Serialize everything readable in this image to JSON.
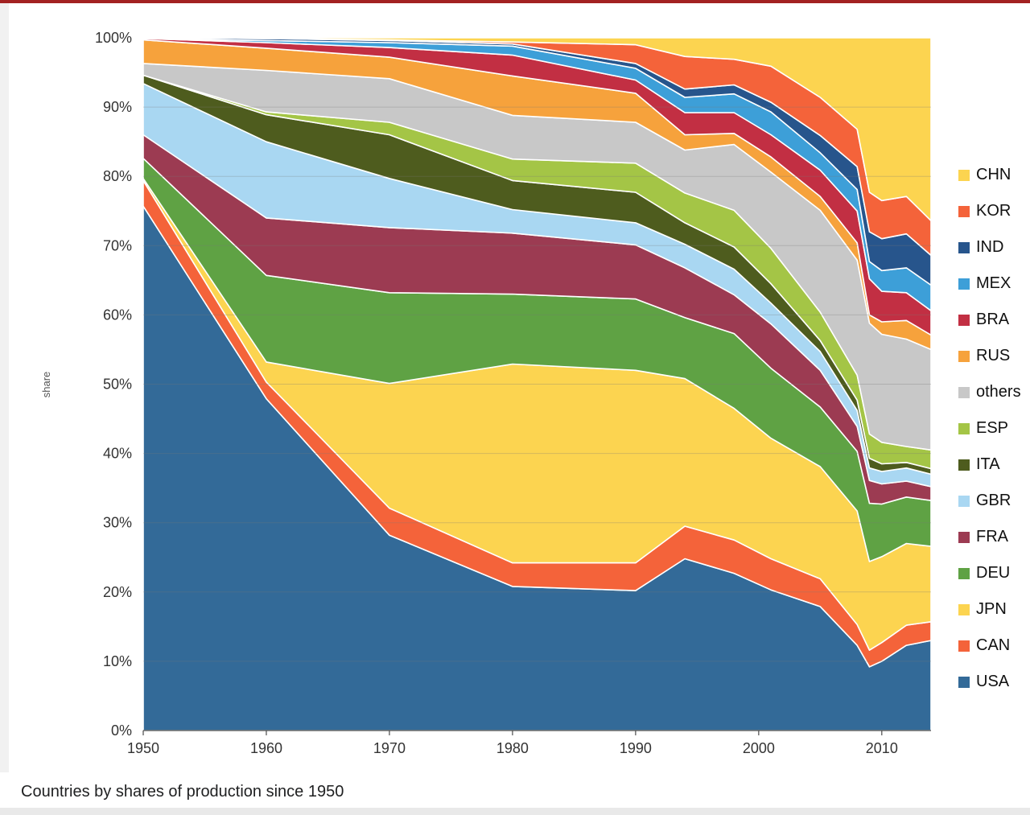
{
  "page": {
    "top_rule_color": "#a32222",
    "background_color": "#ffffff"
  },
  "chart_data": {
    "type": "area",
    "stacked": true,
    "caption": "Countries by shares of production since 1950",
    "ylabel": "share",
    "unit": "percent of world production",
    "grid": "horizontal",
    "legend_position": "right",
    "x_range": [
      1950,
      2014
    ],
    "y_range": [
      0,
      100
    ],
    "x_ticks": {
      "values": [
        1950,
        1960,
        1970,
        1980,
        1990,
        2000,
        2010
      ],
      "labels": [
        "1950",
        "1960",
        "1970",
        "1980",
        "1990",
        "2000",
        "2010"
      ]
    },
    "y_ticks": {
      "values": [
        0,
        10,
        20,
        30,
        40,
        50,
        60,
        70,
        80,
        90,
        100
      ],
      "labels": [
        "0%",
        "10%",
        "20%",
        "30%",
        "40%",
        "50%",
        "60%",
        "70%",
        "80%",
        "90%",
        "100%"
      ]
    },
    "years": [
      1950,
      1960,
      1970,
      1980,
      1990,
      1994,
      1998,
      2001,
      2005,
      2008,
      2009,
      2010,
      2012,
      2014
    ],
    "legend_labels": [
      "CHN",
      "KOR",
      "IND",
      "MEX",
      "BRA",
      "RUS",
      "others",
      "ESP",
      "ITA",
      "GBR",
      "FRA",
      "DEU",
      "JPN",
      "CAN",
      "USA"
    ],
    "series": [
      {
        "name": "USA",
        "color": "#336a98",
        "values": [
          75.7,
          47.9,
          28.2,
          20.8,
          20.2,
          24.8,
          22.7,
          20.3,
          17.9,
          12.3,
          9.2,
          10.0,
          12.3,
          13.0
        ]
      },
      {
        "name": "CAN",
        "color": "#f4633a",
        "values": [
          3.7,
          2.4,
          3.9,
          3.4,
          4.0,
          4.7,
          4.8,
          4.5,
          4.0,
          3.0,
          2.4,
          2.7,
          2.9,
          2.7
        ]
      },
      {
        "name": "JPN",
        "color": "#fcd450",
        "values": [
          0.3,
          2.9,
          18.0,
          28.7,
          27.8,
          21.3,
          19.0,
          17.4,
          16.2,
          16.4,
          12.8,
          12.4,
          11.8,
          10.9
        ]
      },
      {
        "name": "DEU",
        "color": "#5fa244",
        "values": [
          2.9,
          12.5,
          13.1,
          10.1,
          10.3,
          8.8,
          10.8,
          10.1,
          8.6,
          8.6,
          8.4,
          7.6,
          6.7,
          6.6
        ]
      },
      {
        "name": "FRA",
        "color": "#9c3b52",
        "values": [
          3.4,
          8.3,
          9.4,
          8.8,
          7.8,
          7.2,
          5.6,
          6.4,
          5.3,
          3.6,
          3.3,
          2.9,
          2.3,
          2.0
        ]
      },
      {
        "name": "GBR",
        "color": "#a9d7f2",
        "values": [
          7.4,
          11.0,
          7.1,
          3.4,
          3.2,
          3.4,
          3.7,
          3.0,
          2.7,
          2.3,
          1.8,
          1.8,
          1.9,
          1.8
        ]
      },
      {
        "name": "ITA",
        "color": "#4e5c1e",
        "values": [
          1.2,
          3.9,
          6.3,
          4.2,
          4.4,
          3.1,
          3.2,
          2.8,
          1.6,
          1.5,
          1.4,
          1.1,
          0.8,
          0.8
        ]
      },
      {
        "name": "ESP",
        "color": "#a4c546",
        "values": [
          0.0,
          0.4,
          1.8,
          3.1,
          4.2,
          4.3,
          5.3,
          5.1,
          4.1,
          3.6,
          3.5,
          3.1,
          2.3,
          2.7
        ]
      },
      {
        "name": "others",
        "color": "#c8c8c8",
        "values": [
          1.7,
          6.0,
          6.3,
          6.3,
          5.9,
          6.2,
          9.5,
          11.0,
          14.7,
          16.6,
          16.0,
          15.6,
          15.5,
          14.5
        ]
      },
      {
        "name": "RUS",
        "color": "#f6a23c",
        "values": [
          3.4,
          3.2,
          3.1,
          5.7,
          4.2,
          2.2,
          1.6,
          2.2,
          2.0,
          2.5,
          1.2,
          1.8,
          2.7,
          2.1
        ]
      },
      {
        "name": "BRA",
        "color": "#c22f43",
        "values": [
          0.2,
          0.8,
          1.4,
          3.0,
          1.9,
          3.2,
          3.0,
          3.2,
          3.8,
          4.6,
          5.2,
          4.4,
          4.0,
          3.5
        ]
      },
      {
        "name": "MEX",
        "color": "#3d9fd8",
        "values": [
          0.0,
          0.3,
          0.7,
          1.3,
          1.7,
          2.2,
          2.7,
          3.3,
          2.5,
          3.1,
          2.5,
          3.0,
          3.6,
          3.7
        ]
      },
      {
        "name": "IND",
        "color": "#27558c",
        "values": [
          0.1,
          0.3,
          0.3,
          0.3,
          0.7,
          1.2,
          1.3,
          1.4,
          2.5,
          3.3,
          4.3,
          4.6,
          4.9,
          4.3
        ]
      },
      {
        "name": "KOR",
        "color": "#f4633a",
        "values": [
          0.0,
          0.0,
          0.1,
          0.3,
          2.7,
          4.7,
          3.7,
          5.2,
          5.5,
          5.4,
          5.7,
          5.5,
          5.4,
          5.0
        ]
      },
      {
        "name": "CHN",
        "color": "#fcd450",
        "values": [
          0.0,
          0.1,
          0.3,
          0.6,
          1.0,
          2.7,
          3.1,
          4.1,
          8.6,
          13.2,
          22.3,
          23.5,
          22.9,
          26.4
        ]
      }
    ]
  }
}
